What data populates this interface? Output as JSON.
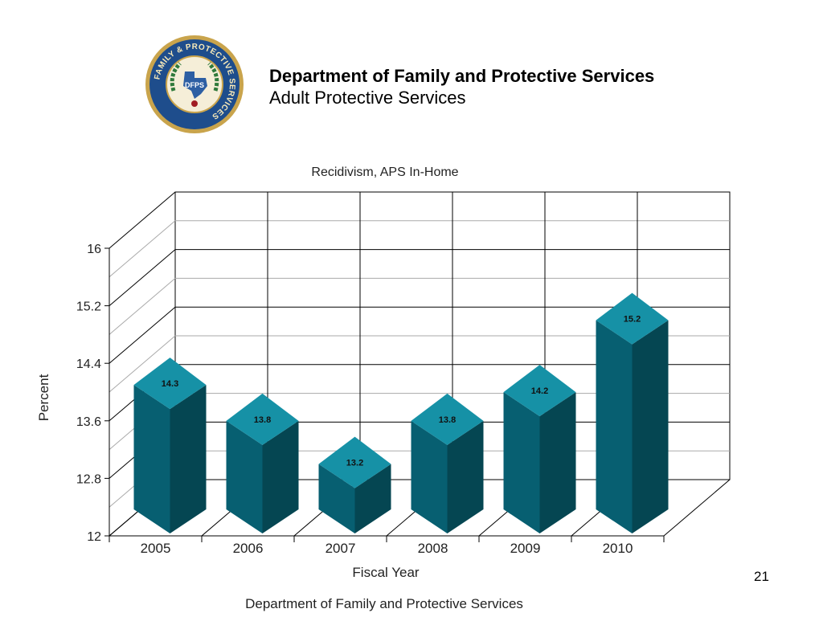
{
  "header": {
    "org_name": "Department of Family and Protective Services",
    "division": "Adult Protective Services"
  },
  "seal": {
    "ring_text": "FAMILY & PROTECTIVE SERVICES",
    "center_text": "DFPS"
  },
  "slide_number": "21",
  "colors": {
    "bar_front": "#075f71",
    "bar_side": "#054652",
    "bar_top": "#1691a6",
    "grid": "#000000",
    "seal_blue": "#1e4d8c",
    "seal_gold": "#c9a44c"
  },
  "chart_data": {
    "type": "bar",
    "title": "Recidivism, APS In-Home",
    "xlabel": "Fiscal Year",
    "ylabel": "Percent",
    "categories": [
      "2005",
      "2006",
      "2007",
      "2008",
      "2009",
      "2010"
    ],
    "values": [
      14.3,
      13.8,
      13.2,
      13.8,
      14.2,
      15.2
    ],
    "data_labels": [
      "14.3",
      "13.8",
      "13.2",
      "13.8",
      "14.2",
      "15.2"
    ],
    "ylim": [
      12,
      16
    ],
    "yticks": [
      "12",
      "12.8",
      "13.6",
      "14.4",
      "15.2",
      "16"
    ],
    "ytick_values": [
      12,
      12.8,
      13.6,
      14.4,
      15.2,
      16
    ],
    "grid": true,
    "style": "3d",
    "source": "Department of Family and Protective Services"
  }
}
